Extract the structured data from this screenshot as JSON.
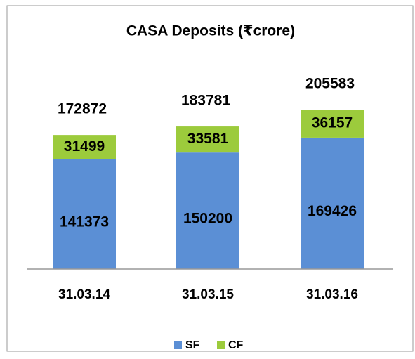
{
  "chart_data": {
    "type": "stacked_bar",
    "title": "CASA  Deposits (₹crore)",
    "categories": [
      "31.03.14",
      "31.03.15",
      "31.03.16"
    ],
    "series": [
      {
        "name": "SF",
        "color": "#5b8fd5",
        "values": [
          141373,
          150200,
          169426
        ]
      },
      {
        "name": "CF",
        "color": "#9ccb3c",
        "values": [
          31499,
          33581,
          36157
        ]
      }
    ],
    "totals": [
      172872,
      183781,
      205583
    ],
    "legend": "bottom"
  }
}
